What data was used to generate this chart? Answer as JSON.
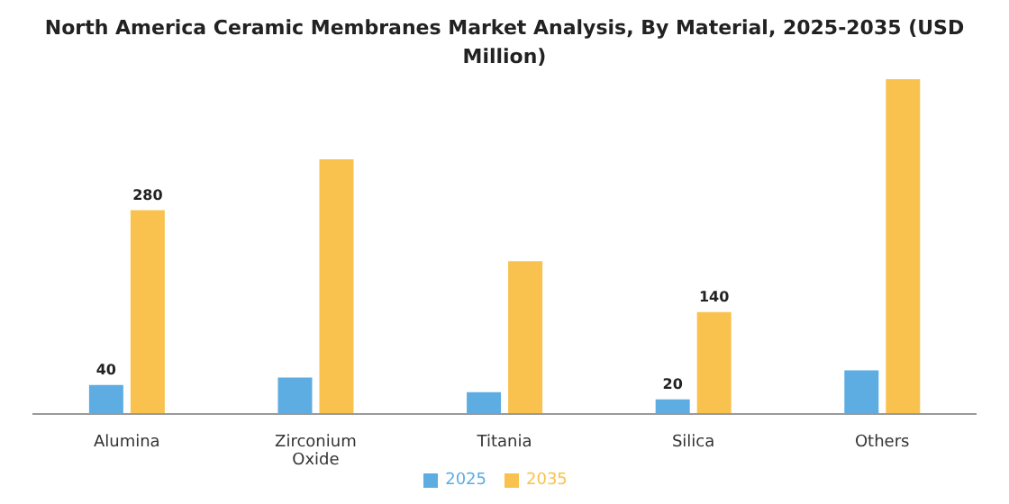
{
  "chart_data": {
    "type": "bar",
    "title": "North America Ceramic Membranes Market Analysis, By Material, 2025-2035 (USD Million)",
    "categories": [
      "Alumina",
      "Zirconium Oxide",
      "Titania",
      "Silica",
      "Others"
    ],
    "series": [
      {
        "name": "2025",
        "color": "#5dade2",
        "values": [
          40,
          50,
          30,
          20,
          60
        ],
        "value_labels": [
          "40",
          null,
          null,
          "20",
          null
        ]
      },
      {
        "name": "2035",
        "color": "#f9c24f",
        "values": [
          280,
          350,
          210,
          140,
          460
        ],
        "value_labels": [
          "280",
          null,
          null,
          "140",
          null
        ]
      }
    ],
    "legend": "bottom",
    "grid": false
  }
}
